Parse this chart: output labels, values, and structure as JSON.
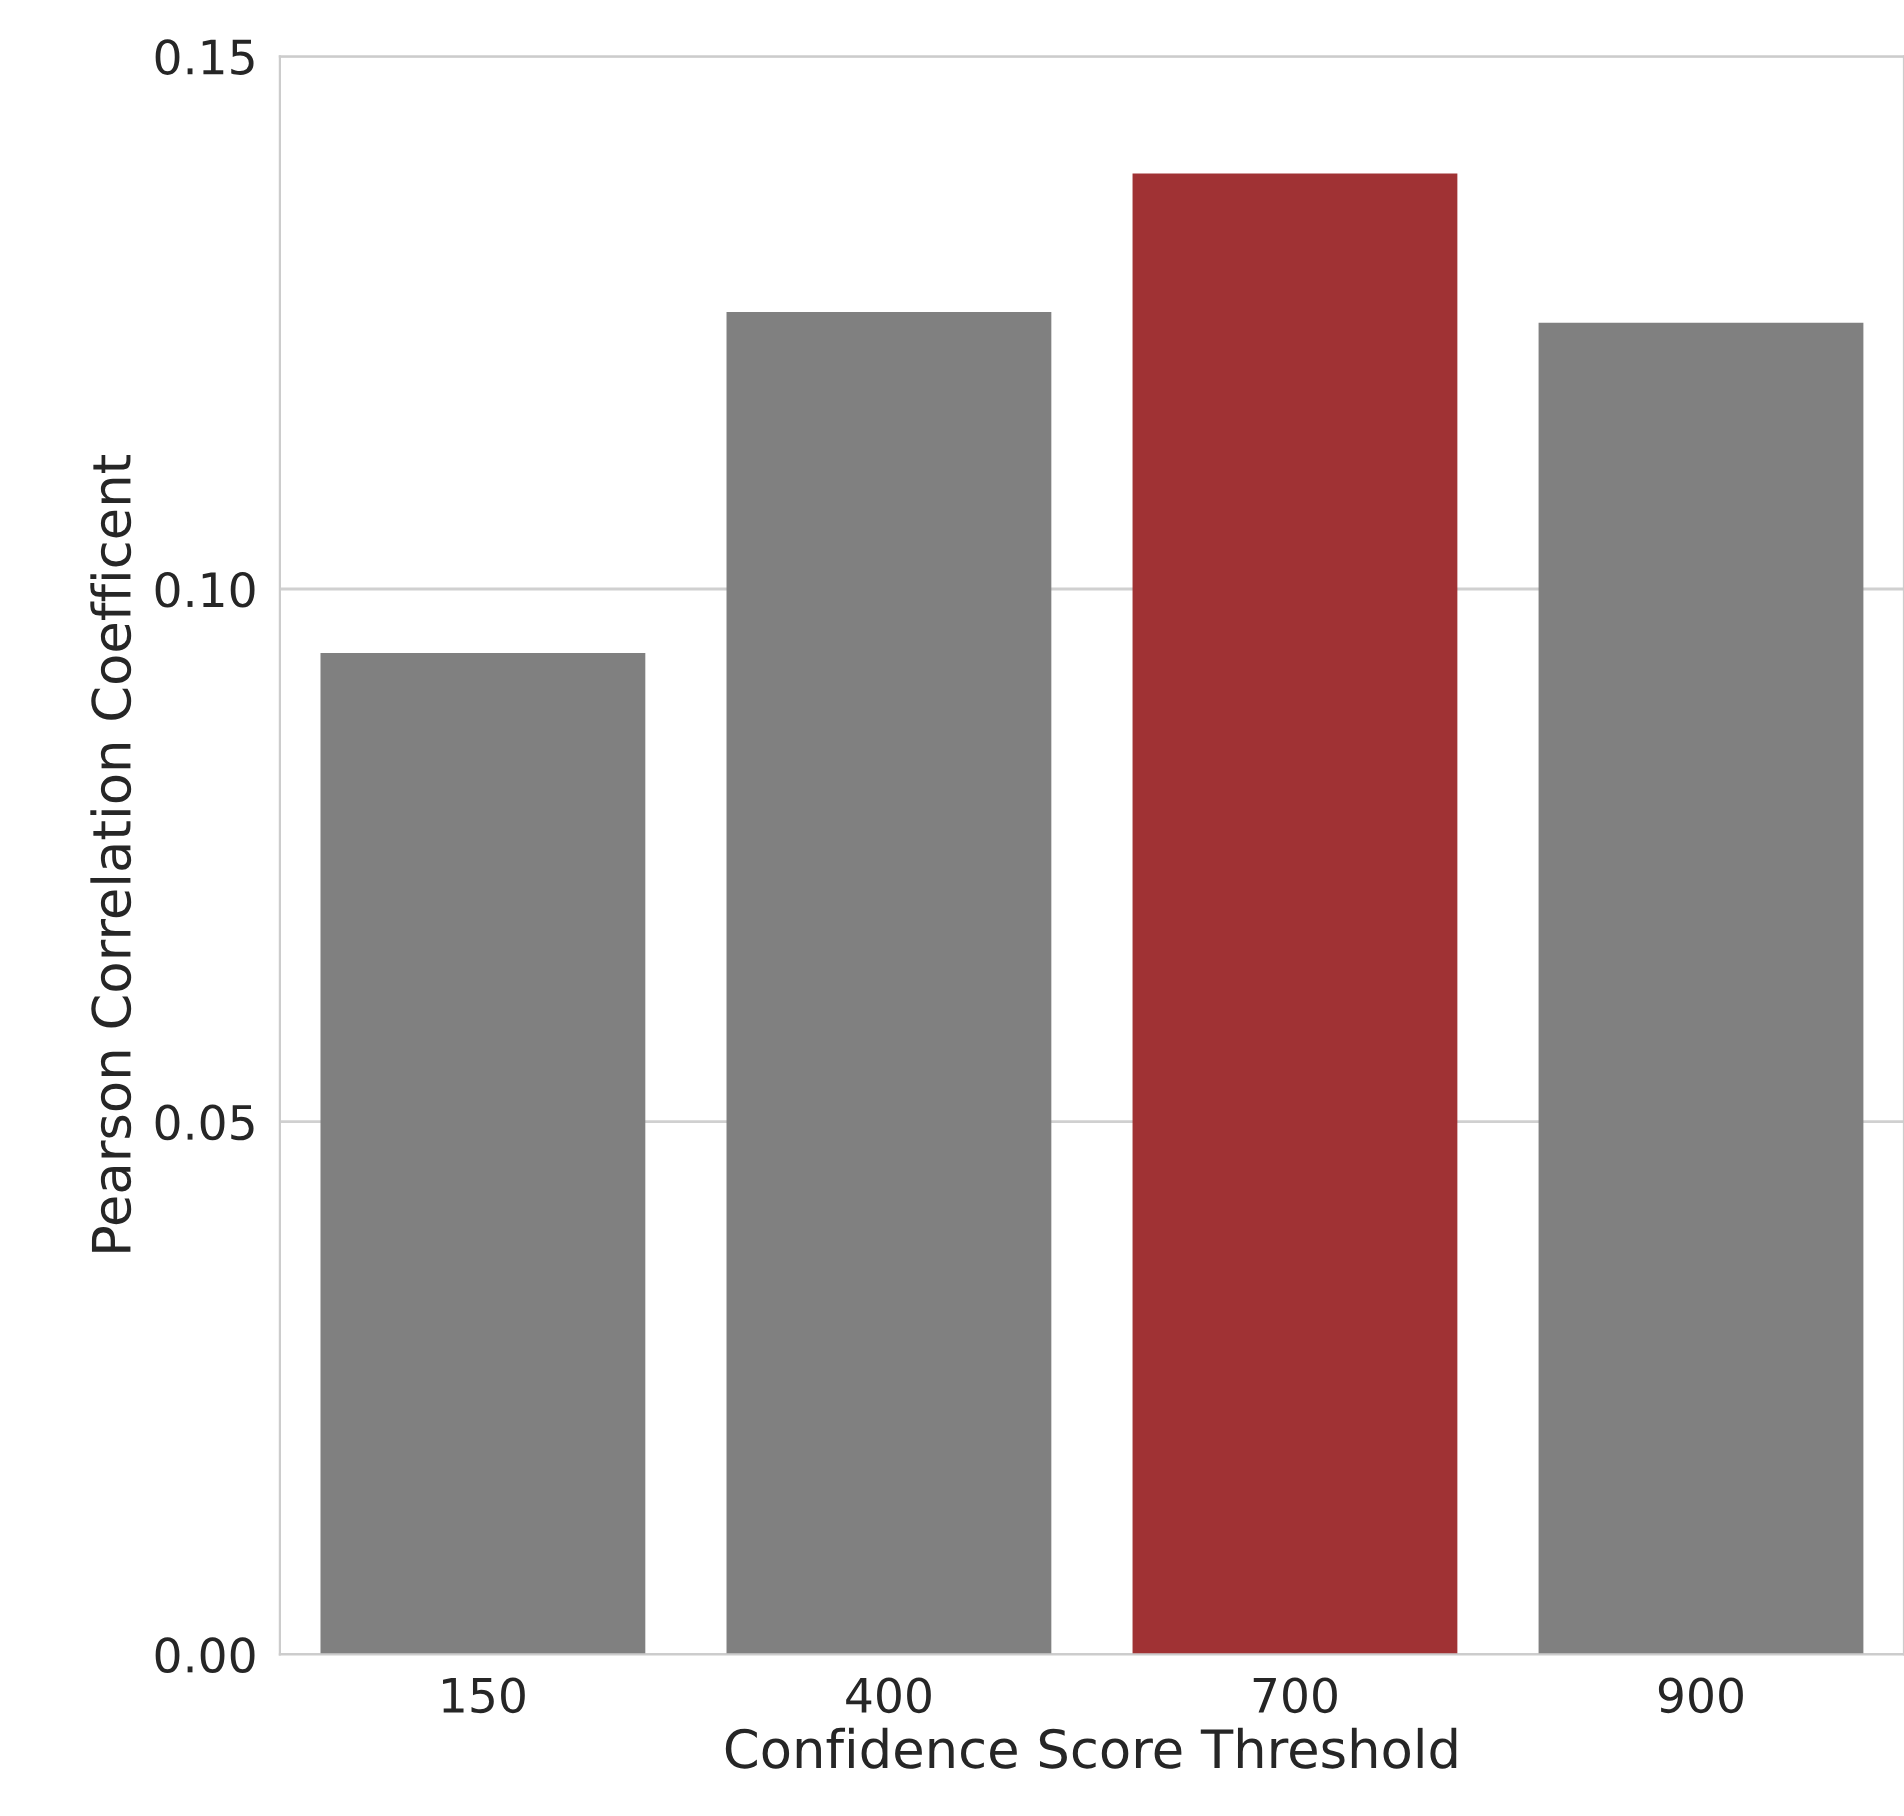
{
  "chart_data": {
    "type": "bar",
    "xlabel": "Confidence Score Threshold",
    "ylabel": "Pearson Correlation Coefficent",
    "categories": [
      "150",
      "400",
      "700",
      "900"
    ],
    "values": [
      0.094,
      0.126,
      0.139,
      0.125
    ],
    "colors": [
      "#808080",
      "#808080",
      "#a03234",
      "#808080"
    ],
    "ylim": [
      0,
      0.15
    ],
    "yticks": [
      {
        "value": 0,
        "label": "0.00"
      },
      {
        "value": 0.05,
        "label": "0.05"
      },
      {
        "value": 0.1,
        "label": "0.10"
      },
      {
        "value": 0.15,
        "label": "0.15"
      }
    ],
    "grid": "y",
    "legend": false
  }
}
